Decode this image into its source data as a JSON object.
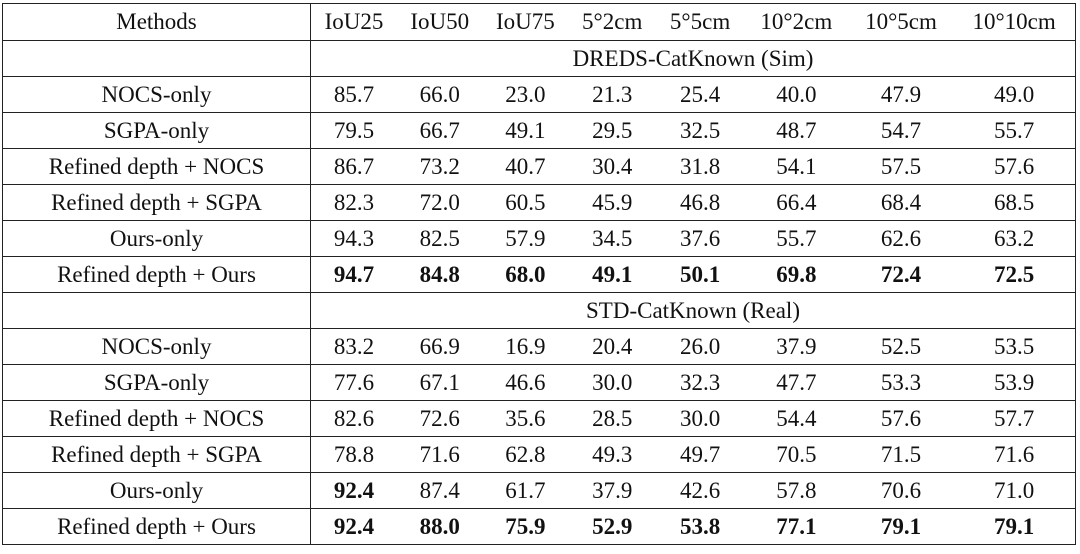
{
  "table": {
    "columns": [
      "Methods",
      "IoU25",
      "IoU50",
      "IoU75",
      "5°2cm",
      "5°5cm",
      "10°2cm",
      "10°5cm",
      "10°10cm"
    ],
    "sections": [
      {
        "title": "DREDS-CatKnown (Sim)",
        "rows": [
          {
            "method": "NOCS-only",
            "values": [
              "85.7",
              "66.0",
              "23.0",
              "21.3",
              "25.4",
              "40.0",
              "47.9",
              "49.0"
            ],
            "bold": [
              false,
              false,
              false,
              false,
              false,
              false,
              false,
              false
            ]
          },
          {
            "method": "SGPA-only",
            "values": [
              "79.5",
              "66.7",
              "49.1",
              "29.5",
              "32.5",
              "48.7",
              "54.7",
              "55.7"
            ],
            "bold": [
              false,
              false,
              false,
              false,
              false,
              false,
              false,
              false
            ]
          },
          {
            "method": "Refined depth + NOCS",
            "values": [
              "86.7",
              "73.2",
              "40.7",
              "30.4",
              "31.8",
              "54.1",
              "57.5",
              "57.6"
            ],
            "bold": [
              false,
              false,
              false,
              false,
              false,
              false,
              false,
              false
            ]
          },
          {
            "method": "Refined depth + SGPA",
            "values": [
              "82.3",
              "72.0",
              "60.5",
              "45.9",
              "46.8",
              "66.4",
              "68.4",
              "68.5"
            ],
            "bold": [
              false,
              false,
              false,
              false,
              false,
              false,
              false,
              false
            ]
          },
          {
            "method": "Ours-only",
            "values": [
              "94.3",
              "82.5",
              "57.9",
              "34.5",
              "37.6",
              "55.7",
              "62.6",
              "63.2"
            ],
            "bold": [
              false,
              false,
              false,
              false,
              false,
              false,
              false,
              false
            ]
          },
          {
            "method": "Refined depth + Ours",
            "values": [
              "94.7",
              "84.8",
              "68.0",
              "49.1",
              "50.1",
              "69.8",
              "72.4",
              "72.5"
            ],
            "bold": [
              true,
              true,
              true,
              true,
              true,
              true,
              true,
              true
            ]
          }
        ]
      },
      {
        "title": "STD-CatKnown (Real)",
        "rows": [
          {
            "method": "NOCS-only",
            "values": [
              "83.2",
              "66.9",
              "16.9",
              "20.4",
              "26.0",
              "37.9",
              "52.5",
              "53.5"
            ],
            "bold": [
              false,
              false,
              false,
              false,
              false,
              false,
              false,
              false
            ]
          },
          {
            "method": "SGPA-only",
            "values": [
              "77.6",
              "67.1",
              "46.6",
              "30.0",
              "32.3",
              "47.7",
              "53.3",
              "53.9"
            ],
            "bold": [
              false,
              false,
              false,
              false,
              false,
              false,
              false,
              false
            ]
          },
          {
            "method": "Refined depth + NOCS",
            "values": [
              "82.6",
              "72.6",
              "35.6",
              "28.5",
              "30.0",
              "54.4",
              "57.6",
              "57.7"
            ],
            "bold": [
              false,
              false,
              false,
              false,
              false,
              false,
              false,
              false
            ]
          },
          {
            "method": "Refined depth + SGPA",
            "values": [
              "78.8",
              "71.6",
              "62.8",
              "49.3",
              "49.7",
              "70.5",
              "71.5",
              "71.6"
            ],
            "bold": [
              false,
              false,
              false,
              false,
              false,
              false,
              false,
              false
            ]
          },
          {
            "method": "Ours-only",
            "values": [
              "92.4",
              "87.4",
              "61.7",
              "37.9",
              "42.6",
              "57.8",
              "70.6",
              "71.0"
            ],
            "bold": [
              true,
              false,
              false,
              false,
              false,
              false,
              false,
              false
            ]
          },
          {
            "method": "Refined depth + Ours",
            "values": [
              "92.4",
              "88.0",
              "75.9",
              "52.9",
              "53.8",
              "77.1",
              "79.1",
              "79.1"
            ],
            "bold": [
              true,
              true,
              true,
              true,
              true,
              true,
              true,
              true
            ]
          }
        ]
      }
    ]
  }
}
